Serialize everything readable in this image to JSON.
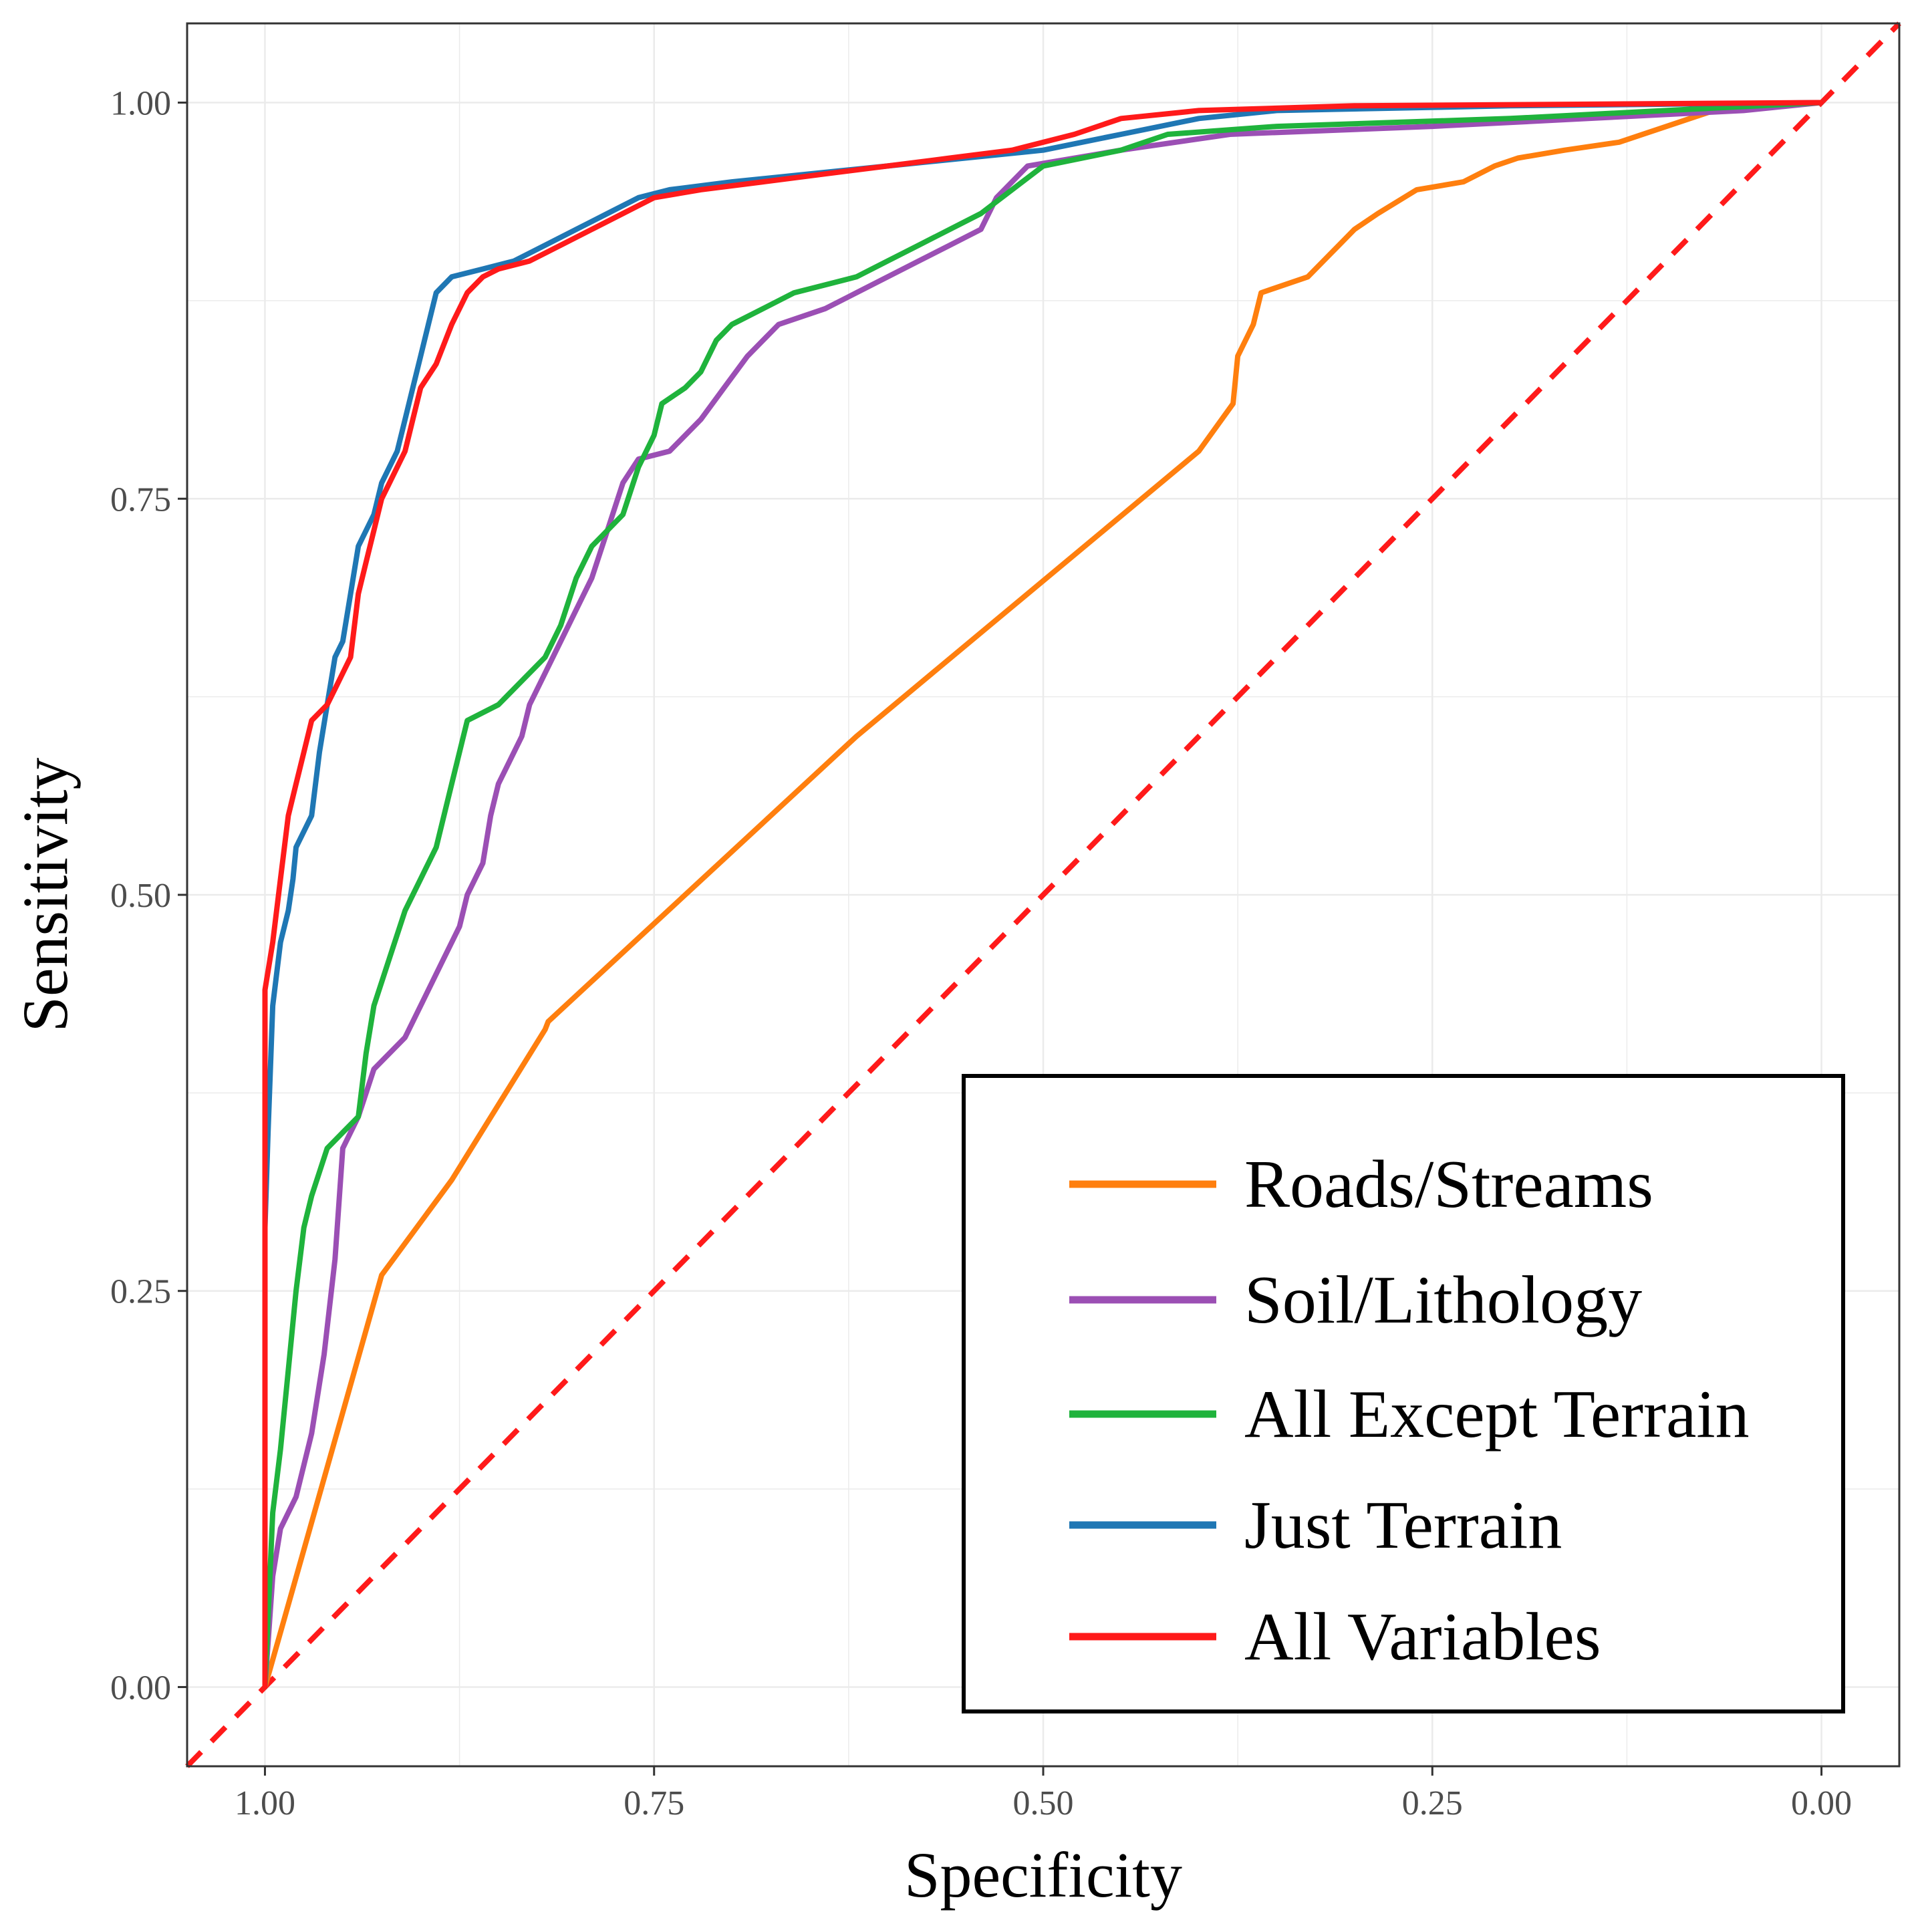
{
  "chart_data": {
    "type": "line",
    "title": "",
    "xlabel": "Specificity",
    "ylabel": "Sensitivity",
    "xlim": [
      1.05,
      -0.05
    ],
    "ylim": [
      -0.05,
      1.05
    ],
    "x_reversed": true,
    "grid": true,
    "x_ticks": [
      {
        "value": 1.0,
        "label": "1.00"
      },
      {
        "value": 0.75,
        "label": "0.75"
      },
      {
        "value": 0.5,
        "label": "0.50"
      },
      {
        "value": 0.25,
        "label": "0.25"
      },
      {
        "value": 0.0,
        "label": "0.00"
      }
    ],
    "y_ticks": [
      {
        "value": 0.0,
        "label": "0.00"
      },
      {
        "value": 0.25,
        "label": "0.25"
      },
      {
        "value": 0.5,
        "label": "0.50"
      },
      {
        "value": 0.75,
        "label": "0.75"
      },
      {
        "value": 1.0,
        "label": "1.00"
      }
    ],
    "legend_position": "bottom-right",
    "reference_line": {
      "name": "chance diagonal",
      "color": "#ff1a1a",
      "style": "dashed",
      "points": [
        [
          1.0,
          0.0
        ],
        [
          0.0,
          1.0
        ]
      ]
    },
    "series": [
      {
        "name": "Roads/Streams",
        "color": "#ff7f0e",
        "points": [
          [
            1.0,
            0.0
          ],
          [
            0.925,
            0.26
          ],
          [
            0.88,
            0.32
          ],
          [
            0.82,
            0.415
          ],
          [
            0.818,
            0.42
          ],
          [
            0.62,
            0.6
          ],
          [
            0.4,
            0.78
          ],
          [
            0.378,
            0.81
          ],
          [
            0.375,
            0.84
          ],
          [
            0.365,
            0.86
          ],
          [
            0.36,
            0.88
          ],
          [
            0.33,
            0.89
          ],
          [
            0.31,
            0.91
          ],
          [
            0.3,
            0.92
          ],
          [
            0.285,
            0.93
          ],
          [
            0.26,
            0.945
          ],
          [
            0.23,
            0.95
          ],
          [
            0.21,
            0.96
          ],
          [
            0.195,
            0.965
          ],
          [
            0.165,
            0.97
          ],
          [
            0.13,
            0.975
          ],
          [
            0.06,
            0.998
          ],
          [
            0.0,
            1.0
          ]
        ]
      },
      {
        "name": "Soil/Lithology",
        "color": "#9b4fb4",
        "points": [
          [
            1.0,
            0.0
          ],
          [
            0.995,
            0.07
          ],
          [
            0.99,
            0.1
          ],
          [
            0.98,
            0.12
          ],
          [
            0.97,
            0.16
          ],
          [
            0.962,
            0.21
          ],
          [
            0.955,
            0.27
          ],
          [
            0.95,
            0.34
          ],
          [
            0.94,
            0.36
          ],
          [
            0.93,
            0.39
          ],
          [
            0.91,
            0.41
          ],
          [
            0.9,
            0.43
          ],
          [
            0.885,
            0.46
          ],
          [
            0.875,
            0.48
          ],
          [
            0.87,
            0.5
          ],
          [
            0.86,
            0.52
          ],
          [
            0.855,
            0.55
          ],
          [
            0.85,
            0.57
          ],
          [
            0.835,
            0.6
          ],
          [
            0.83,
            0.62
          ],
          [
            0.82,
            0.64
          ],
          [
            0.81,
            0.66
          ],
          [
            0.8,
            0.68
          ],
          [
            0.79,
            0.7
          ],
          [
            0.78,
            0.73
          ],
          [
            0.77,
            0.76
          ],
          [
            0.76,
            0.775
          ],
          [
            0.74,
            0.78
          ],
          [
            0.72,
            0.8
          ],
          [
            0.705,
            0.82
          ],
          [
            0.69,
            0.84
          ],
          [
            0.67,
            0.86
          ],
          [
            0.64,
            0.87
          ],
          [
            0.62,
            0.88
          ],
          [
            0.6,
            0.89
          ],
          [
            0.58,
            0.9
          ],
          [
            0.56,
            0.91
          ],
          [
            0.54,
            0.92
          ],
          [
            0.53,
            0.94
          ],
          [
            0.51,
            0.96
          ],
          [
            0.45,
            0.97
          ],
          [
            0.38,
            0.98
          ],
          [
            0.25,
            0.985
          ],
          [
            0.15,
            0.99
          ],
          [
            0.05,
            0.995
          ],
          [
            0.0,
            1.0
          ]
        ]
      },
      {
        "name": "All Except Terrain",
        "color": "#1fb33c",
        "points": [
          [
            1.0,
            0.0
          ],
          [
            0.995,
            0.11
          ],
          [
            0.99,
            0.15
          ],
          [
            0.985,
            0.2
          ],
          [
            0.98,
            0.25
          ],
          [
            0.975,
            0.29
          ],
          [
            0.97,
            0.31
          ],
          [
            0.96,
            0.34
          ],
          [
            0.95,
            0.35
          ],
          [
            0.94,
            0.36
          ],
          [
            0.935,
            0.4
          ],
          [
            0.93,
            0.43
          ],
          [
            0.92,
            0.46
          ],
          [
            0.91,
            0.49
          ],
          [
            0.9,
            0.51
          ],
          [
            0.89,
            0.53
          ],
          [
            0.88,
            0.57
          ],
          [
            0.87,
            0.61
          ],
          [
            0.85,
            0.62
          ],
          [
            0.84,
            0.63
          ],
          [
            0.82,
            0.65
          ],
          [
            0.81,
            0.67
          ],
          [
            0.8,
            0.7
          ],
          [
            0.79,
            0.72
          ],
          [
            0.78,
            0.73
          ],
          [
            0.77,
            0.74
          ],
          [
            0.76,
            0.77
          ],
          [
            0.75,
            0.79
          ],
          [
            0.745,
            0.81
          ],
          [
            0.73,
            0.82
          ],
          [
            0.72,
            0.83
          ],
          [
            0.71,
            0.85
          ],
          [
            0.7,
            0.86
          ],
          [
            0.68,
            0.87
          ],
          [
            0.66,
            0.88
          ],
          [
            0.64,
            0.885
          ],
          [
            0.62,
            0.89
          ],
          [
            0.6,
            0.9
          ],
          [
            0.58,
            0.91
          ],
          [
            0.56,
            0.92
          ],
          [
            0.54,
            0.93
          ],
          [
            0.52,
            0.945
          ],
          [
            0.5,
            0.96
          ],
          [
            0.45,
            0.97
          ],
          [
            0.42,
            0.98
          ],
          [
            0.35,
            0.985
          ],
          [
            0.2,
            0.99
          ],
          [
            0.1,
            0.995
          ],
          [
            0.0,
            1.0
          ]
        ]
      },
      {
        "name": "Just Terrain",
        "color": "#1f77b4",
        "points": [
          [
            1.0,
            0.0
          ],
          [
            1.0,
            0.29
          ],
          [
            0.998,
            0.35
          ],
          [
            0.995,
            0.43
          ],
          [
            0.99,
            0.47
          ],
          [
            0.985,
            0.49
          ],
          [
            0.982,
            0.51
          ],
          [
            0.98,
            0.53
          ],
          [
            0.97,
            0.55
          ],
          [
            0.965,
            0.59
          ],
          [
            0.96,
            0.62
          ],
          [
            0.955,
            0.65
          ],
          [
            0.95,
            0.66
          ],
          [
            0.945,
            0.69
          ],
          [
            0.94,
            0.72
          ],
          [
            0.93,
            0.74
          ],
          [
            0.925,
            0.76
          ],
          [
            0.915,
            0.78
          ],
          [
            0.91,
            0.8
          ],
          [
            0.905,
            0.82
          ],
          [
            0.9,
            0.84
          ],
          [
            0.895,
            0.86
          ],
          [
            0.89,
            0.88
          ],
          [
            0.88,
            0.89
          ],
          [
            0.86,
            0.895
          ],
          [
            0.84,
            0.9
          ],
          [
            0.82,
            0.91
          ],
          [
            0.8,
            0.92
          ],
          [
            0.78,
            0.93
          ],
          [
            0.76,
            0.94
          ],
          [
            0.74,
            0.945
          ],
          [
            0.7,
            0.95
          ],
          [
            0.65,
            0.955
          ],
          [
            0.6,
            0.96
          ],
          [
            0.55,
            0.965
          ],
          [
            0.5,
            0.97
          ],
          [
            0.45,
            0.98
          ],
          [
            0.4,
            0.99
          ],
          [
            0.35,
            0.995
          ],
          [
            0.2,
            0.998
          ],
          [
            0.0,
            1.0
          ]
        ]
      },
      {
        "name": "All Variables",
        "color": "#ff1a1a",
        "points": [
          [
            1.0,
            0.0
          ],
          [
            1.0,
            0.44
          ],
          [
            0.995,
            0.47
          ],
          [
            0.99,
            0.51
          ],
          [
            0.985,
            0.55
          ],
          [
            0.98,
            0.57
          ],
          [
            0.975,
            0.59
          ],
          [
            0.97,
            0.61
          ],
          [
            0.96,
            0.62
          ],
          [
            0.955,
            0.63
          ],
          [
            0.945,
            0.65
          ],
          [
            0.94,
            0.69
          ],
          [
            0.935,
            0.71
          ],
          [
            0.93,
            0.73
          ],
          [
            0.925,
            0.75
          ],
          [
            0.92,
            0.76
          ],
          [
            0.91,
            0.78
          ],
          [
            0.905,
            0.8
          ],
          [
            0.9,
            0.82
          ],
          [
            0.89,
            0.835
          ],
          [
            0.88,
            0.86
          ],
          [
            0.87,
            0.88
          ],
          [
            0.86,
            0.89
          ],
          [
            0.85,
            0.895
          ],
          [
            0.83,
            0.9
          ],
          [
            0.81,
            0.91
          ],
          [
            0.79,
            0.92
          ],
          [
            0.77,
            0.93
          ],
          [
            0.75,
            0.94
          ],
          [
            0.72,
            0.945
          ],
          [
            0.68,
            0.95
          ],
          [
            0.64,
            0.955
          ],
          [
            0.6,
            0.96
          ],
          [
            0.56,
            0.965
          ],
          [
            0.52,
            0.97
          ],
          [
            0.48,
            0.98
          ],
          [
            0.45,
            0.99
          ],
          [
            0.4,
            0.995
          ],
          [
            0.3,
            0.998
          ],
          [
            0.0,
            1.0
          ]
        ]
      }
    ]
  }
}
